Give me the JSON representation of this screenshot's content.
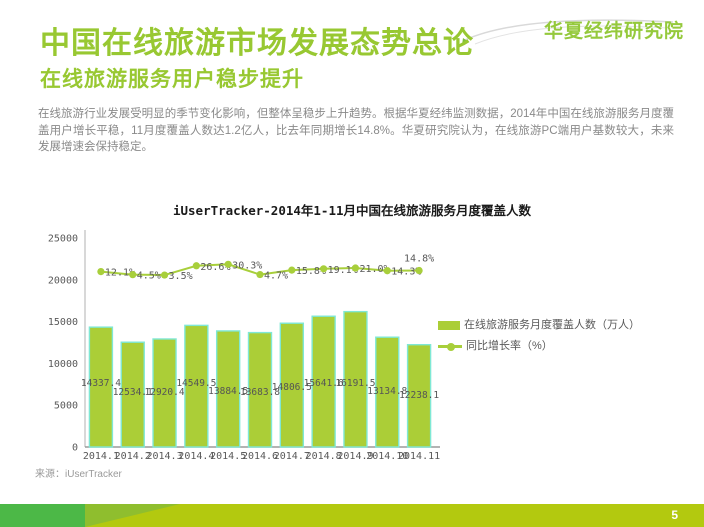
{
  "header": {
    "logo_text": "华夏经纬研究院",
    "title": "中国在线旅游市场发展态势总论",
    "subtitle": "在线旅游服务用户稳步提升",
    "paragraph": "在线旅游行业发展受明显的季节变化影响，但整体呈稳步上升趋势。根据华夏经纬监测数据，2014年中国在线旅游服务月度覆盖用户增长平稳，11月度覆盖人数达1.2亿人，比去年同期增长14.8%。华夏研究院认为，在线旅游PC端用户基数较大，未来发展增速会保持稳定。"
  },
  "chart_data": {
    "type": "bar",
    "title": "iUserTracker-2014年1-11月中国在线旅游服务月度覆盖人数",
    "categories": [
      "2014.1",
      "2014.2",
      "2014.3",
      "2014.4",
      "2014.5",
      "2014.6",
      "2014.7",
      "2014.8",
      "2014.9",
      "2014.10",
      "2014.11"
    ],
    "series": [
      {
        "name": "在线旅游服务月度覆盖人数（万人）",
        "type": "bar",
        "values": [
          14337.4,
          12534.1,
          12920.4,
          14549.5,
          13884.5,
          13683.8,
          14806.5,
          15641.6,
          16191.5,
          13134.8,
          12238.1
        ],
        "color": "#abce37",
        "border_color": "#7fe8d5"
      },
      {
        "name": "同比增长率（%）",
        "type": "line",
        "values": [
          12.1,
          4.5,
          3.5,
          26.6,
          30.3,
          4.7,
          15.8,
          19.1,
          21.0,
          14.3,
          14.8
        ],
        "unit": "%",
        "color": "#a8cf3b"
      }
    ],
    "ylabel": "",
    "xlabel": "",
    "ylim": [
      0,
      25000
    ],
    "y_ticks": [
      0,
      5000,
      10000,
      15000,
      20000,
      25000
    ],
    "grid": false,
    "legend_position": "right"
  },
  "footer": {
    "source": "来源：iUserTracker",
    "page_number": "5"
  },
  "colors": {
    "accent_green": "#98c832",
    "bar_fill": "#abce37",
    "bar_border": "#7fe8d5",
    "line_color": "#a8cf3b",
    "footer_bg": "#b3c90f",
    "footer_square": "#4cb847",
    "footer_wedge": "#8fbe2e",
    "body_text_gray": "#8a8a8a",
    "chart_text_gray": "#595959"
  }
}
